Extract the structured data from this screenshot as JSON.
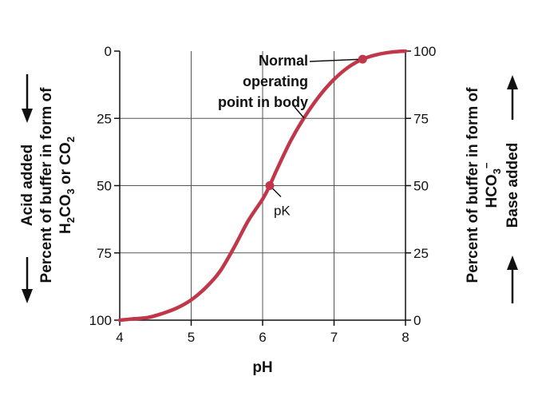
{
  "chart_data": {
    "type": "line",
    "xlabel": "pH",
    "x_ticks": [
      "4",
      "5",
      "6",
      "7",
      "8"
    ],
    "xlim": [
      4,
      8
    ],
    "ylim": [
      0,
      100
    ],
    "left_ticks": [
      "0",
      "25",
      "50",
      "75",
      "100"
    ],
    "right_ticks": [
      "100",
      "75",
      "50",
      "25",
      "0"
    ],
    "left_axis_label": {
      "line1": "Acid added",
      "line2": "Percent of buffer in form of",
      "line3_a": "H",
      "line3_sub1": "2",
      "line3_b": "CO",
      "line3_sub2": "3",
      "line3_c": " or CO",
      "line3_sub3": "2"
    },
    "right_axis_label": {
      "line1": "Percent of buffer in form of",
      "line2_a": "HCO",
      "line2_sub": "3",
      "line2_sup": "−",
      "line3": "Base added"
    },
    "grid": true,
    "series": [
      {
        "color": "#c0374a",
        "x": [
          4.0,
          4.2,
          4.4,
          4.6,
          4.8,
          5.0,
          5.2,
          5.4,
          5.6,
          5.8,
          6.0,
          6.1,
          6.2,
          6.4,
          6.6,
          6.8,
          7.0,
          7.2,
          7.4,
          7.6,
          7.8,
          8.0
        ],
        "y": [
          100,
          99.5,
          99,
          97.5,
          95.5,
          92.5,
          88,
          82,
          73,
          63,
          55,
          50,
          44,
          33,
          24,
          16.5,
          10.5,
          6,
          3,
          1.3,
          0.4,
          0
        ]
      }
    ],
    "points": [
      {
        "x": 6.1,
        "y": 50,
        "label": "pK"
      },
      {
        "x": 7.4,
        "y": 3,
        "label_lines": [
          "Normal",
          "operating",
          "point in body"
        ]
      }
    ]
  }
}
